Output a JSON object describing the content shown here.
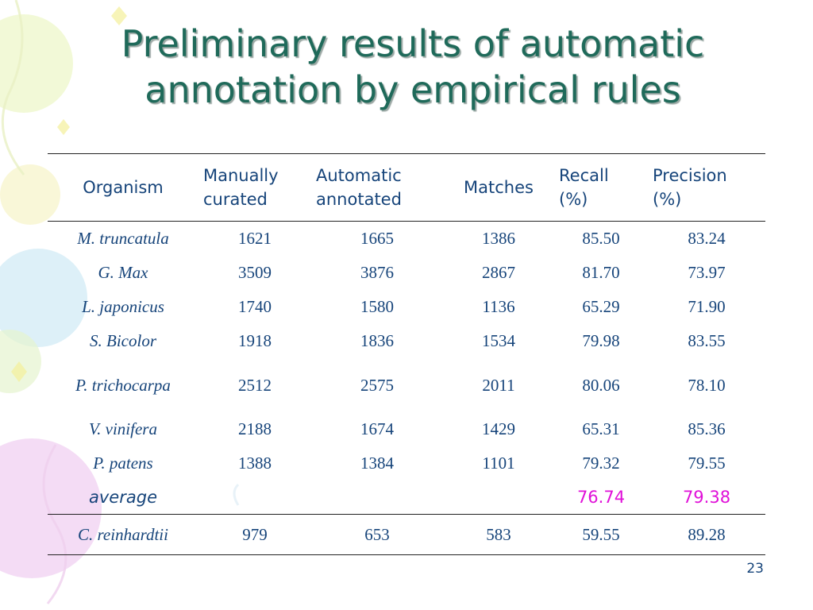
{
  "slide": {
    "title_line1": "Preliminary results of automatic",
    "title_line2": "annotation by empirical rules",
    "page_number": "23",
    "colors": {
      "title": "#1f6a5a",
      "text": "#16447a",
      "highlight": "#e010d8"
    }
  },
  "table": {
    "headers": [
      {
        "line1": "Organism",
        "line2": ""
      },
      {
        "line1": "Manually",
        "line2": "curated"
      },
      {
        "line1": "Automatic",
        "line2": "annotated"
      },
      {
        "line1": "Matches",
        "line2": ""
      },
      {
        "line1": "Recall",
        "line2": "(%)"
      },
      {
        "line1": "Precision",
        "line2": "(%)"
      }
    ],
    "rows": [
      [
        "M. truncatula",
        "1621",
        "1665",
        "1386",
        "85.50",
        "83.24"
      ],
      [
        "G. Max",
        "3509",
        "3876",
        "2867",
        "81.70",
        "73.97"
      ],
      [
        "L. japonicus",
        "1740",
        "1580",
        "1136",
        "65.29",
        "71.90"
      ],
      [
        "S. Bicolor",
        "1918",
        "1836",
        "1534",
        "79.98",
        "83.55"
      ],
      [
        "P. trichocarpa",
        "2512",
        "2575",
        "2011",
        "80.06",
        "78.10"
      ],
      [
        "V. vinifera",
        "2188",
        "1674",
        "1429",
        "65.31",
        "85.36"
      ],
      [
        "P. patens",
        "1388",
        "1384",
        "1101",
        "79.32",
        "79.55"
      ]
    ],
    "average": {
      "label": "average",
      "recall": "76.74",
      "precision": "79.38"
    },
    "extra_row": [
      "C. reinhardtii",
      "979",
      "653",
      "583",
      "59.55",
      "89.28"
    ]
  }
}
